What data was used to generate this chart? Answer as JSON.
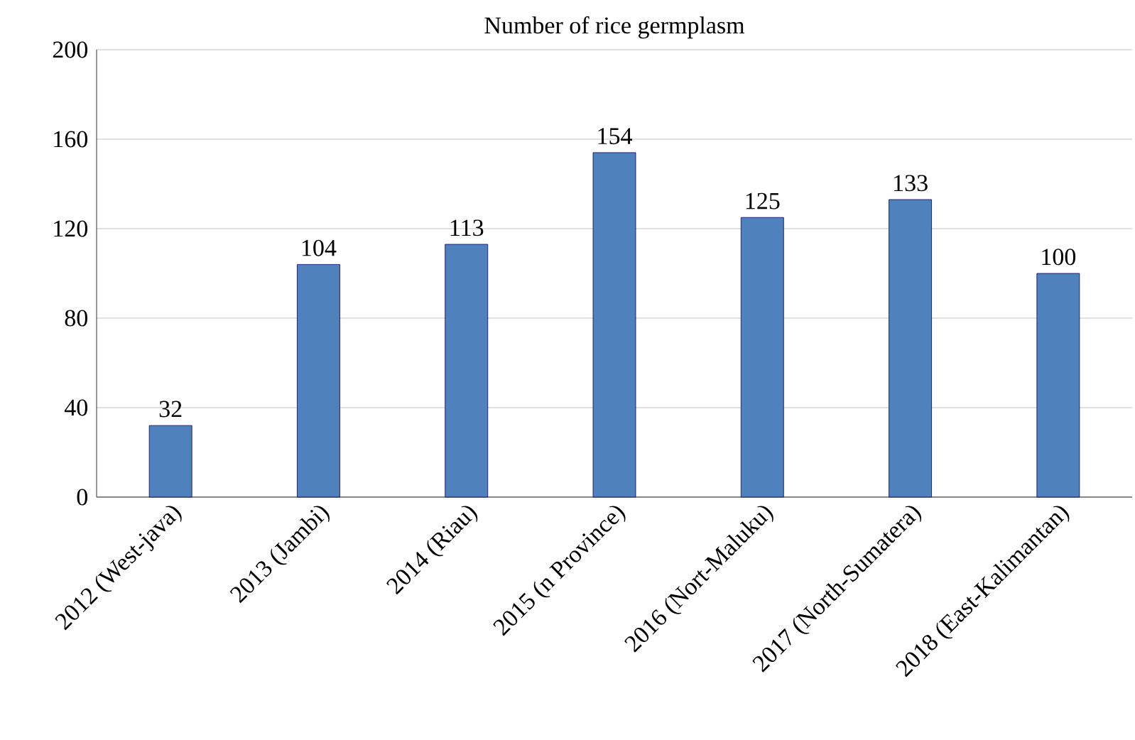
{
  "chart_data": {
    "type": "bar",
    "title": "Number of rice germplasm",
    "categories": [
      "2012 (West-java)",
      "2013 (Jambi)",
      "2014 (Riau)",
      "2015 (n Province)",
      "2016 (Nort-Maluku)",
      "2017 (North-Sumatera)",
      "2018 (East-Kalimantan)"
    ],
    "values": [
      32,
      104,
      113,
      154,
      125,
      133,
      100
    ],
    "color": "#4f81bd",
    "ylim": [
      0,
      200
    ],
    "yticks": [
      0,
      40,
      80,
      120,
      160,
      200
    ],
    "grid": "y",
    "data_labels": true
  }
}
